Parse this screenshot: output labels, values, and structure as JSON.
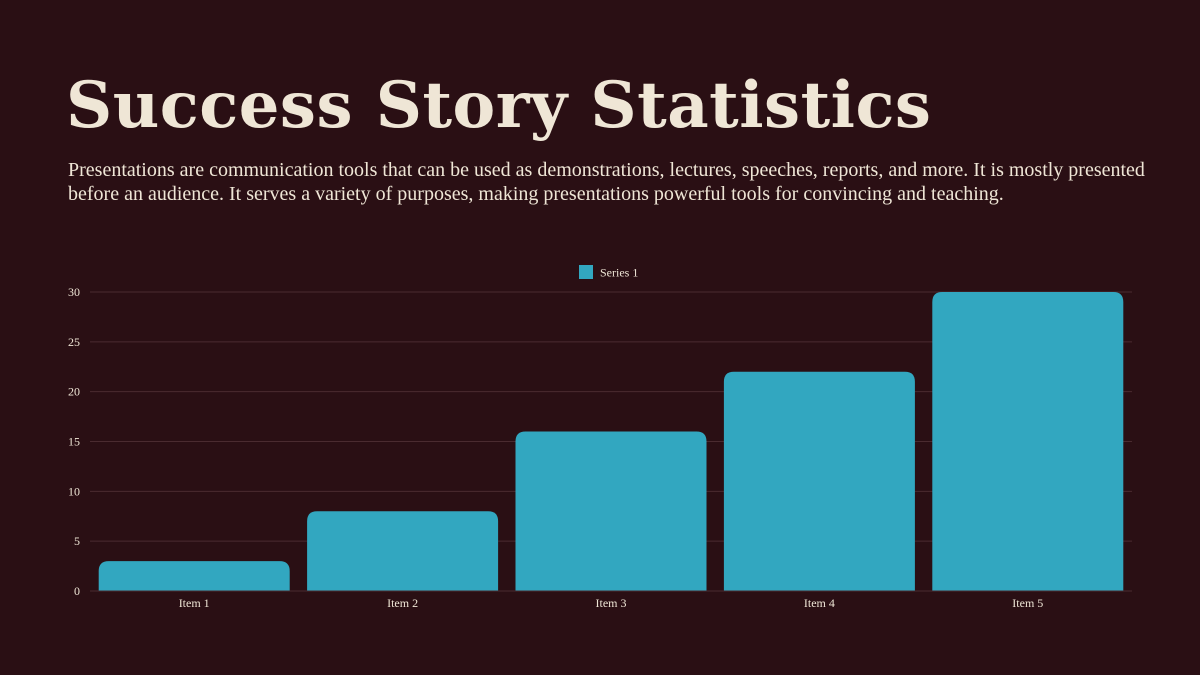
{
  "slide": {
    "title": "Success Story Statistics",
    "description": "Presentations are communication tools that can be used as demonstrations, lectures, speeches, reports, and more. It is mostly presented before an audience. It serves a variety of purposes, making presentations powerful tools for convincing and teaching."
  },
  "colors": {
    "background": "#2a0f14",
    "text": "#efe6d6",
    "bar": "#32a7c0",
    "gridline": "#4a2b30"
  },
  "chart_data": {
    "type": "bar",
    "categories": [
      "Item 1",
      "Item 2",
      "Item 3",
      "Item 4",
      "Item 5"
    ],
    "series": [
      {
        "name": "Series 1",
        "values": [
          3,
          8,
          16,
          22,
          30
        ]
      }
    ],
    "ylim": [
      0,
      30
    ],
    "yticks": [
      0,
      5,
      10,
      15,
      20,
      25,
      30
    ],
    "grid": true,
    "legend": "top-center",
    "title": "",
    "xlabel": "",
    "ylabel": ""
  }
}
